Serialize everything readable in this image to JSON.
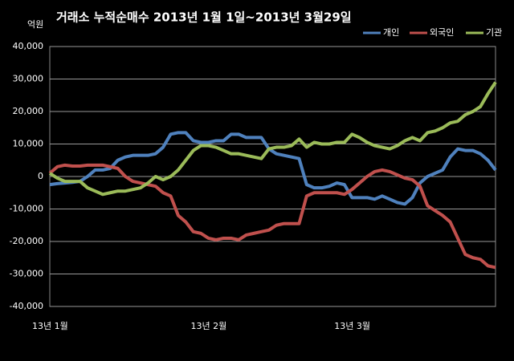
{
  "chart_data": {
    "type": "line",
    "title": "거래소  누적순매수 2013년 1월 1일~2013년 3월29일",
    "y_label": "억원",
    "categories": [
      "13년 1월",
      null,
      null,
      null,
      null,
      null,
      null,
      null,
      null,
      null,
      null,
      null,
      null,
      null,
      null,
      null,
      null,
      null,
      null,
      null,
      null,
      "13년 2월",
      null,
      null,
      null,
      null,
      null,
      null,
      null,
      null,
      null,
      null,
      null,
      null,
      null,
      null,
      null,
      null,
      null,
      null,
      "13년 3월",
      null,
      null,
      null,
      null,
      null,
      null,
      null,
      null,
      null,
      null,
      null,
      null,
      null,
      null,
      null,
      null,
      null,
      null,
      null
    ],
    "series": [
      {
        "name": "개인",
        "color": "#4f81bd",
        "values": [
          -2500,
          -2200,
          -2000,
          -1800,
          -1500,
          0,
          2000,
          2000,
          2500,
          5000,
          6000,
          6500,
          6500,
          6500,
          7000,
          9000,
          13000,
          13500,
          13500,
          11000,
          10500,
          10500,
          11000,
          11000,
          13000,
          13000,
          12000,
          12000,
          12000,
          8500,
          7000,
          6500,
          6000,
          5500,
          -2500,
          -3500,
          -3500,
          -3000,
          -2000,
          -2500,
          -6500,
          -6500,
          -6500,
          -7000,
          -6000,
          -7000,
          -8000,
          -8500,
          -6500,
          -2000,
          0,
          1000,
          2000,
          6000,
          8500,
          8000,
          8000,
          7000,
          5000,
          2000
        ]
      },
      {
        "name": "외국인",
        "color": "#c0504d",
        "values": [
          1000,
          3000,
          3500,
          3200,
          3200,
          3500,
          3500,
          3500,
          3000,
          2500,
          0,
          -1500,
          -2000,
          -2500,
          -3000,
          -5000,
          -6000,
          -12000,
          -14000,
          -17000,
          -17500,
          -19000,
          -19500,
          -19000,
          -19000,
          -19500,
          -18000,
          -17500,
          -17000,
          -16500,
          -15000,
          -14500,
          -14500,
          -14500,
          -6000,
          -5000,
          -5000,
          -5000,
          -5000,
          -5500,
          -4000,
          -2000,
          0,
          1500,
          2000,
          1500,
          500,
          -500,
          -1000,
          -3000,
          -9000,
          -10500,
          -12000,
          -14000,
          -19000,
          -24000,
          -25000,
          -25500,
          -27500,
          -28000
        ]
      },
      {
        "name": "기관",
        "color": "#9bbb59",
        "values": [
          1000,
          -500,
          -1500,
          -1500,
          -1500,
          -3500,
          -4500,
          -5500,
          -5000,
          -4500,
          -4500,
          -4000,
          -3500,
          -2000,
          0,
          -1000,
          0,
          2000,
          5000,
          8000,
          9500,
          9500,
          9000,
          8000,
          7000,
          7000,
          6500,
          6000,
          5500,
          8500,
          9000,
          9000,
          9500,
          11500,
          9000,
          10500,
          10000,
          10000,
          10500,
          10500,
          13000,
          12000,
          10500,
          9500,
          9000,
          8500,
          9500,
          11000,
          12000,
          11000,
          13500,
          14000,
          15000,
          16500,
          17000,
          19000,
          20000,
          21500,
          25500,
          29000
        ]
      }
    ],
    "ylim": [
      -40000,
      40000
    ],
    "yticks": [
      {
        "value": 40000,
        "label": "40,000"
      },
      {
        "value": 30000,
        "label": "30,000"
      },
      {
        "value": 20000,
        "label": "20,000"
      },
      {
        "value": 10000,
        "label": "10,000"
      },
      0,
      {
        "value": -10000,
        "label": "-10,000"
      },
      {
        "value": -20000,
        "label": "-20,000"
      },
      {
        "value": -30000,
        "label": "-30,000"
      },
      {
        "value": -40000,
        "label": "-40,000"
      }
    ],
    "grid": true,
    "legend": "upper right"
  }
}
